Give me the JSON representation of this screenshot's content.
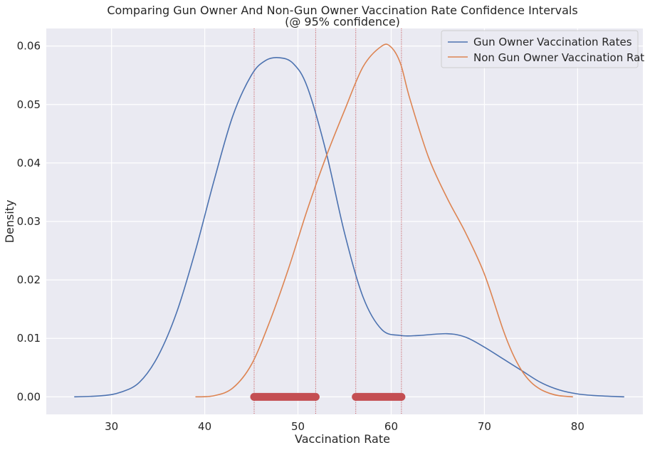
{
  "chart_data": {
    "type": "line",
    "title": "Comparing Gun Owner And Non-Gun Owner Vaccination Rate Confidence Intervals",
    "subtitle": "(@ 95% confidence)",
    "xlabel": "Vaccination Rate",
    "ylabel": "Density",
    "xlim": [
      23,
      87
    ],
    "ylim": [
      -0.003,
      0.063
    ],
    "xticks": [
      30,
      40,
      50,
      60,
      70,
      80
    ],
    "yticks": [
      0.0,
      0.01,
      0.02,
      0.03,
      0.04,
      0.05,
      0.06
    ],
    "ytick_labels": [
      "0.00",
      "0.01",
      "0.02",
      "0.03",
      "0.04",
      "0.05",
      "0.06"
    ],
    "grid": true,
    "legend_position": "top-right",
    "series": [
      {
        "name": "Gun Owner Vaccination Rates",
        "color": "#4c72b0",
        "points": [
          [
            26,
            0.0
          ],
          [
            29,
            0.0002
          ],
          [
            31,
            0.0008
          ],
          [
            33,
            0.0025
          ],
          [
            35,
            0.007
          ],
          [
            37,
            0.0145
          ],
          [
            39,
            0.025
          ],
          [
            41,
            0.037
          ],
          [
            43,
            0.048
          ],
          [
            45,
            0.055
          ],
          [
            46.5,
            0.0575
          ],
          [
            48,
            0.058
          ],
          [
            49.5,
            0.057
          ],
          [
            51,
            0.053
          ],
          [
            53,
            0.042
          ],
          [
            55,
            0.028
          ],
          [
            57,
            0.017
          ],
          [
            59,
            0.0115
          ],
          [
            61,
            0.0105
          ],
          [
            63,
            0.0105
          ],
          [
            66,
            0.0108
          ],
          [
            68,
            0.0102
          ],
          [
            70,
            0.0085
          ],
          [
            72,
            0.0065
          ],
          [
            74,
            0.0045
          ],
          [
            76,
            0.0025
          ],
          [
            78,
            0.0012
          ],
          [
            80,
            0.0005
          ],
          [
            82,
            0.0002
          ],
          [
            85,
            0.0
          ]
        ]
      },
      {
        "name": "Non Gun Owner Vaccination Rates",
        "color": "#dd8452",
        "points": [
          [
            39,
            0.0
          ],
          [
            41,
            0.0002
          ],
          [
            43,
            0.0015
          ],
          [
            45,
            0.0055
          ],
          [
            47,
            0.013
          ],
          [
            49,
            0.022
          ],
          [
            51,
            0.032
          ],
          [
            53,
            0.041
          ],
          [
            55,
            0.049
          ],
          [
            57,
            0.0565
          ],
          [
            59,
            0.06
          ],
          [
            60,
            0.0598
          ],
          [
            61,
            0.057
          ],
          [
            62,
            0.051
          ],
          [
            64,
            0.041
          ],
          [
            66,
            0.034
          ],
          [
            68,
            0.028
          ],
          [
            70,
            0.021
          ],
          [
            72,
            0.0115
          ],
          [
            73,
            0.0075
          ],
          [
            74,
            0.0045
          ],
          [
            75,
            0.0025
          ],
          [
            76,
            0.0013
          ],
          [
            77,
            0.0006
          ],
          [
            78,
            0.0002
          ],
          [
            79.5,
            0.0
          ]
        ]
      }
    ],
    "confidence_intervals": {
      "color": "#c44e52",
      "intervals": [
        [
          45.3,
          51.9
        ],
        [
          56.2,
          61.1
        ]
      ]
    }
  }
}
